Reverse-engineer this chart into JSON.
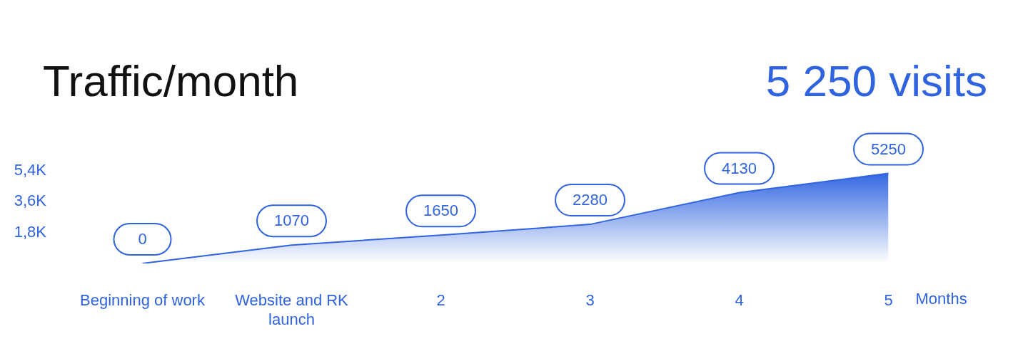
{
  "chart_data": {
    "type": "area",
    "title": "Traffic/month",
    "annotations": [
      "5 250 visits"
    ],
    "xlabel": "Months",
    "categories": [
      "Beginning of work",
      "Website and RK launch",
      "2",
      "3",
      "4",
      "5"
    ],
    "values": [
      0,
      1070,
      1650,
      2280,
      4130,
      5250
    ],
    "color": "#2f63e0",
    "ylim": [
      0,
      5400
    ],
    "yticks": [
      {
        "value": 1800,
        "label": "1,8K"
      },
      {
        "value": 3600,
        "label": "3,6K"
      },
      {
        "value": 5400,
        "label": "5,4K"
      }
    ],
    "value_labels": [
      "0",
      "1070",
      "1650",
      "2280",
      "4130",
      "5250"
    ],
    "grid": false,
    "legend": false
  }
}
